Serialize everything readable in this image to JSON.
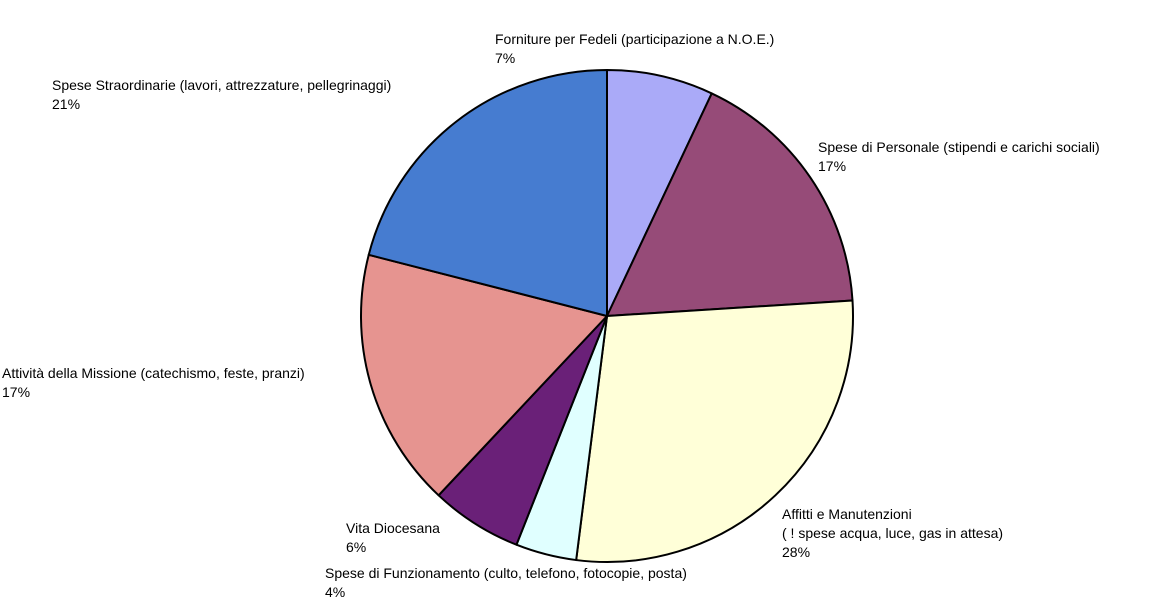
{
  "chart_data": {
    "type": "pie",
    "categories": [
      "Forniture per Fedeli (participazione a N.O.E.)",
      "Spese di Personale (stipendi e carichi sociali)",
      "Affitti e Manutenzioni\n( ! spese acqua, luce, gas in attesa)",
      "Spese di Funzionamento (culto, telefono, fotocopie, posta)",
      "Vita Diocesana",
      "Attività della Missione (catechismo, feste, pranzi)",
      "Spese Straordinarie (lavori, attrezzature, pellegrinaggi)"
    ],
    "values": [
      7,
      17,
      28,
      4,
      6,
      17,
      21
    ],
    "value_labels": [
      "7%",
      "17%",
      "28%",
      "4%",
      "6%",
      "17%",
      "21%"
    ],
    "colors": [
      "#aaaaf8",
      "#964b78",
      "#ffffd8",
      "#e0ffff",
      "#6a2078",
      "#e69490",
      "#467cd0"
    ]
  }
}
